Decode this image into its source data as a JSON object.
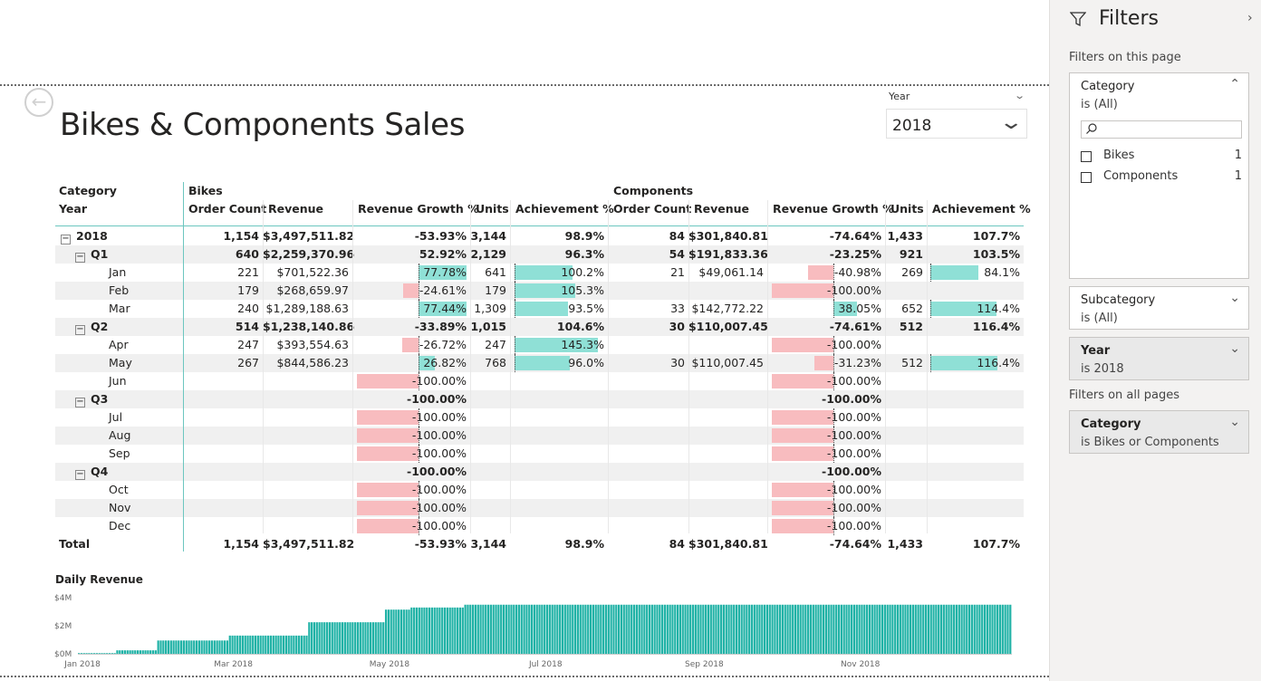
{
  "report": {
    "title": "Bikes & Components Sales"
  },
  "slicer": {
    "label": "Year",
    "value": "2018"
  },
  "matrix": {
    "row_header_top": "Category",
    "row_header_bottom": "Year",
    "groups": [
      "Bikes",
      "Components"
    ],
    "columns": [
      "Order Count",
      "Revenue",
      "Revenue Growth %",
      "Units",
      "Achievement %"
    ],
    "rows": [
      {
        "label": "2018",
        "level": 0,
        "bold": true,
        "shade": false,
        "expander": "−",
        "bikes": {
          "oc": "1,154",
          "rev": "$3,497,511.82",
          "gr": "-53.93%",
          "gv": null,
          "units": "3,144",
          "ach": "98.9%",
          "av": null
        },
        "comp": {
          "oc": "84",
          "rev": "$301,840.81",
          "gr": "-74.64%",
          "gv": null,
          "units": "1,433",
          "ach": "107.7%",
          "av": null
        }
      },
      {
        "label": "Q1",
        "level": 1,
        "bold": true,
        "shade": true,
        "expander": "−",
        "bikes": {
          "oc": "640",
          "rev": "$2,259,370.96",
          "gr": "52.92%",
          "gv": null,
          "units": "2,129",
          "ach": "96.3%",
          "av": null
        },
        "comp": {
          "oc": "54",
          "rev": "$191,833.36",
          "gr": "-23.25%",
          "gv": null,
          "units": "921",
          "ach": "103.5%",
          "av": null
        }
      },
      {
        "label": "Jan",
        "level": 2,
        "bold": false,
        "shade": false,
        "bikes": {
          "oc": "221",
          "rev": "$701,522.36",
          "gr": "77.78%",
          "gv": 77.78,
          "units": "641",
          "ach": "100.2%",
          "av": 100.2
        },
        "comp": {
          "oc": "21",
          "rev": "$49,061.14",
          "gr": "-40.98%",
          "gv": -40.98,
          "units": "269",
          "ach": "84.1%",
          "av": 84.1
        }
      },
      {
        "label": "Feb",
        "level": 2,
        "bold": false,
        "shade": true,
        "bikes": {
          "oc": "179",
          "rev": "$268,659.97",
          "gr": "-24.61%",
          "gv": -24.61,
          "units": "179",
          "ach": "105.3%",
          "av": 105.3
        },
        "comp": {
          "oc": "",
          "rev": "",
          "gr": "-100.00%",
          "gv": -100,
          "units": "",
          "ach": "",
          "av": null
        }
      },
      {
        "label": "Mar",
        "level": 2,
        "bold": false,
        "shade": false,
        "bikes": {
          "oc": "240",
          "rev": "$1,289,188.63",
          "gr": "77.44%",
          "gv": 77.44,
          "units": "1,309",
          "ach": "93.5%",
          "av": 93.5
        },
        "comp": {
          "oc": "33",
          "rev": "$142,772.22",
          "gr": "38.05%",
          "gv": 38.05,
          "units": "652",
          "ach": "114.4%",
          "av": 114.4
        }
      },
      {
        "label": "Q2",
        "level": 1,
        "bold": true,
        "shade": true,
        "expander": "−",
        "bikes": {
          "oc": "514",
          "rev": "$1,238,140.86",
          "gr": "-33.89%",
          "gv": null,
          "units": "1,015",
          "ach": "104.6%",
          "av": null
        },
        "comp": {
          "oc": "30",
          "rev": "$110,007.45",
          "gr": "-74.61%",
          "gv": null,
          "units": "512",
          "ach": "116.4%",
          "av": null
        }
      },
      {
        "label": "Apr",
        "level": 2,
        "bold": false,
        "shade": false,
        "bikes": {
          "oc": "247",
          "rev": "$393,554.63",
          "gr": "-26.72%",
          "gv": -26.72,
          "units": "247",
          "ach": "145.3%",
          "av": 145.3
        },
        "comp": {
          "oc": "",
          "rev": "",
          "gr": "-100.00%",
          "gv": -100,
          "units": "",
          "ach": "",
          "av": null
        }
      },
      {
        "label": "May",
        "level": 2,
        "bold": false,
        "shade": true,
        "bikes": {
          "oc": "267",
          "rev": "$844,586.23",
          "gr": "26.82%",
          "gv": 26.82,
          "units": "768",
          "ach": "96.0%",
          "av": 96.0
        },
        "comp": {
          "oc": "30",
          "rev": "$110,007.45",
          "gr": "-31.23%",
          "gv": -31.23,
          "units": "512",
          "ach": "116.4%",
          "av": 116.4
        }
      },
      {
        "label": "Jun",
        "level": 2,
        "bold": false,
        "shade": false,
        "bikes": {
          "oc": "",
          "rev": "",
          "gr": "-100.00%",
          "gv": -100,
          "units": "",
          "ach": "",
          "av": null
        },
        "comp": {
          "oc": "",
          "rev": "",
          "gr": "-100.00%",
          "gv": -100,
          "units": "",
          "ach": "",
          "av": null
        }
      },
      {
        "label": "Q3",
        "level": 1,
        "bold": true,
        "shade": true,
        "expander": "−",
        "bikes": {
          "oc": "",
          "rev": "",
          "gr": "-100.00%",
          "gv": null,
          "units": "",
          "ach": "",
          "av": null
        },
        "comp": {
          "oc": "",
          "rev": "",
          "gr": "-100.00%",
          "gv": null,
          "units": "",
          "ach": "",
          "av": null
        }
      },
      {
        "label": "Jul",
        "level": 2,
        "bold": false,
        "shade": false,
        "bikes": {
          "oc": "",
          "rev": "",
          "gr": "-100.00%",
          "gv": -100,
          "units": "",
          "ach": "",
          "av": null
        },
        "comp": {
          "oc": "",
          "rev": "",
          "gr": "-100.00%",
          "gv": -100,
          "units": "",
          "ach": "",
          "av": null
        }
      },
      {
        "label": "Aug",
        "level": 2,
        "bold": false,
        "shade": true,
        "bikes": {
          "oc": "",
          "rev": "",
          "gr": "-100.00%",
          "gv": -100,
          "units": "",
          "ach": "",
          "av": null
        },
        "comp": {
          "oc": "",
          "rev": "",
          "gr": "-100.00%",
          "gv": -100,
          "units": "",
          "ach": "",
          "av": null
        }
      },
      {
        "label": "Sep",
        "level": 2,
        "bold": false,
        "shade": false,
        "bikes": {
          "oc": "",
          "rev": "",
          "gr": "-100.00%",
          "gv": -100,
          "units": "",
          "ach": "",
          "av": null
        },
        "comp": {
          "oc": "",
          "rev": "",
          "gr": "-100.00%",
          "gv": -100,
          "units": "",
          "ach": "",
          "av": null
        }
      },
      {
        "label": "Q4",
        "level": 1,
        "bold": true,
        "shade": true,
        "expander": "−",
        "bikes": {
          "oc": "",
          "rev": "",
          "gr": "-100.00%",
          "gv": null,
          "units": "",
          "ach": "",
          "av": null
        },
        "comp": {
          "oc": "",
          "rev": "",
          "gr": "-100.00%",
          "gv": null,
          "units": "",
          "ach": "",
          "av": null
        }
      },
      {
        "label": "Oct",
        "level": 2,
        "bold": false,
        "shade": false,
        "bikes": {
          "oc": "",
          "rev": "",
          "gr": "-100.00%",
          "gv": -100,
          "units": "",
          "ach": "",
          "av": null
        },
        "comp": {
          "oc": "",
          "rev": "",
          "gr": "-100.00%",
          "gv": -100,
          "units": "",
          "ach": "",
          "av": null
        }
      },
      {
        "label": "Nov",
        "level": 2,
        "bold": false,
        "shade": true,
        "bikes": {
          "oc": "",
          "rev": "",
          "gr": "-100.00%",
          "gv": -100,
          "units": "",
          "ach": "",
          "av": null
        },
        "comp": {
          "oc": "",
          "rev": "",
          "gr": "-100.00%",
          "gv": -100,
          "units": "",
          "ach": "",
          "av": null
        }
      },
      {
        "label": "Dec",
        "level": 2,
        "bold": false,
        "shade": false,
        "bikes": {
          "oc": "",
          "rev": "",
          "gr": "-100.00%",
          "gv": -100,
          "units": "",
          "ach": "",
          "av": null
        },
        "comp": {
          "oc": "",
          "rev": "",
          "gr": "-100.00%",
          "gv": -100,
          "units": "",
          "ach": "",
          "av": null
        }
      }
    ],
    "total": {
      "label": "Total",
      "bikes": {
        "oc": "1,154",
        "rev": "$3,497,511.82",
        "gr": "-53.93%",
        "units": "3,144",
        "ach": "98.9%"
      },
      "comp": {
        "oc": "84",
        "rev": "$301,840.81",
        "gr": "-74.64%",
        "units": "1,433",
        "ach": "107.7%"
      }
    },
    "colors": {
      "negative_bar": "#f8bcbf",
      "positive_bar": "#8fe0d6"
    }
  },
  "chart_data": {
    "type": "bar",
    "title": "Daily Revenue",
    "ylim": [
      0,
      4000000
    ],
    "yticks": [
      "$0M",
      "$2M",
      "$4M"
    ],
    "xticks": [
      "Jan 2018",
      "Mar 2018",
      "May 2018",
      "Jul 2018",
      "Sep 2018",
      "Nov 2018"
    ],
    "color": "#20b2a6",
    "steps": [
      {
        "start": "2018-01-01",
        "end": "2018-01-15",
        "value": 50000
      },
      {
        "start": "2018-01-16",
        "end": "2018-01-31",
        "value": 250000
      },
      {
        "start": "2018-02-01",
        "end": "2018-02-28",
        "value": 950000
      },
      {
        "start": "2018-03-01",
        "end": "2018-03-31",
        "value": 1300000
      },
      {
        "start": "2018-04-01",
        "end": "2018-04-30",
        "value": 2250000
      },
      {
        "start": "2018-05-01",
        "end": "2018-05-10",
        "value": 3150000
      },
      {
        "start": "2018-05-11",
        "end": "2018-05-31",
        "value": 3300000
      },
      {
        "start": "2018-06-01",
        "end": "2018-12-31",
        "value": 3500000
      }
    ]
  },
  "filters": {
    "title": "Filters",
    "page_section": "Filters on this page",
    "all_section": "Filters on all pages",
    "cards": {
      "category": {
        "title": "Category",
        "sub": "is (All)",
        "options": [
          {
            "label": "Bikes",
            "count": "1"
          },
          {
            "label": "Components",
            "count": "1"
          }
        ]
      },
      "subcategory": {
        "title": "Subcategory",
        "sub": "is (All)"
      },
      "year": {
        "title": "Year",
        "sub": "is 2018"
      },
      "category_all": {
        "title": "Category",
        "sub": "is Bikes or Components"
      }
    }
  }
}
